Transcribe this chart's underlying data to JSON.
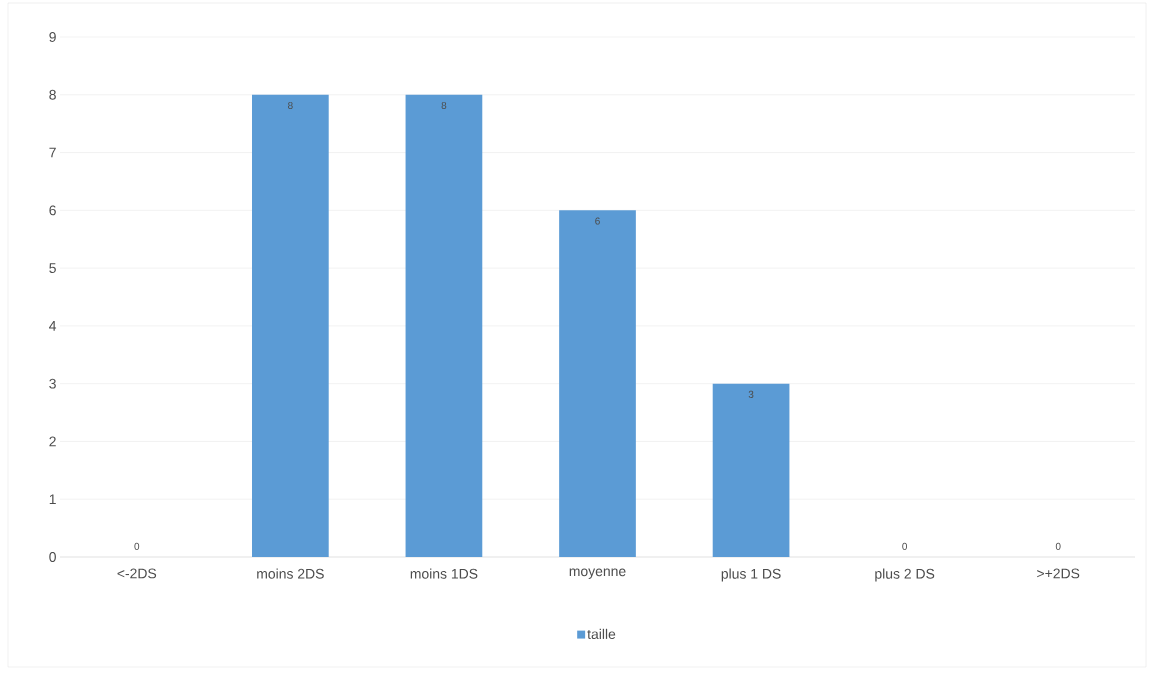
{
  "chart_data": {
    "type": "bar",
    "categories": [
      "<-2DS",
      "moins 2DS",
      "moins 1DS",
      "moyenne",
      "plus 1 DS",
      "plus 2 DS",
      ">+2DS"
    ],
    "series": [
      {
        "name": "taille",
        "color": "#5b9bd5",
        "values": [
          0,
          8,
          8,
          6,
          3,
          0,
          0
        ]
      }
    ],
    "ylim": [
      0,
      9
    ],
    "yticks": [
      0,
      1,
      2,
      3,
      4,
      5,
      6,
      7,
      8,
      9
    ],
    "grid": "y",
    "legend": "bottom",
    "data_labels": true
  }
}
